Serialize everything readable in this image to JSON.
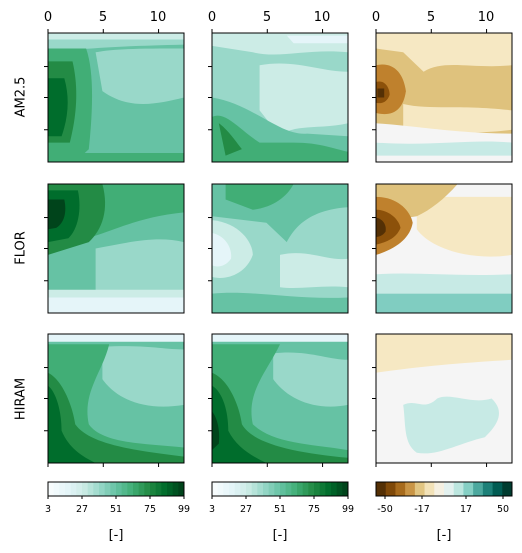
{
  "chart_data": {
    "type": "heatmap",
    "layout": "3x3 grid of filled-contour panels with shared colorbars per column",
    "rows": [
      "AM2.5",
      "FLOR",
      "HIRAM"
    ],
    "x_ticks": [
      "0",
      "5",
      "10"
    ],
    "x_range": [
      0,
      12.3
    ],
    "y_ticks_visible": false,
    "column_colorbars": [
      {
        "cmap": "BuGn",
        "ticks": [
          "3",
          "27",
          "51",
          "75",
          "99"
        ],
        "range": [
          3,
          99
        ],
        "label": "[-]"
      },
      {
        "cmap": "BuGn",
        "ticks": [
          "3",
          "27",
          "51",
          "75",
          "99"
        ],
        "range": [
          3,
          99
        ],
        "label": "[-]"
      },
      {
        "cmap": "BrBG",
        "ticks": [
          "-50",
          "-17",
          "17",
          "50"
        ],
        "range": [
          -50,
          50
        ],
        "label": "[-]"
      }
    ],
    "cmap_colors": {
      "BuGn": [
        "#f7fcfd",
        "#e5f5f9",
        "#ccece6",
        "#99d8c9",
        "#66c2a4",
        "#41ae76",
        "#238b45",
        "#006d2c",
        "#00441b"
      ],
      "BrBG": [
        "#543005",
        "#8c510a",
        "#bf812d",
        "#dfc27d",
        "#f6e8c3",
        "#f5f5f5",
        "#c7eae5",
        "#80cdc1",
        "#35978f",
        "#01665e",
        "#003c30"
      ]
    }
  }
}
